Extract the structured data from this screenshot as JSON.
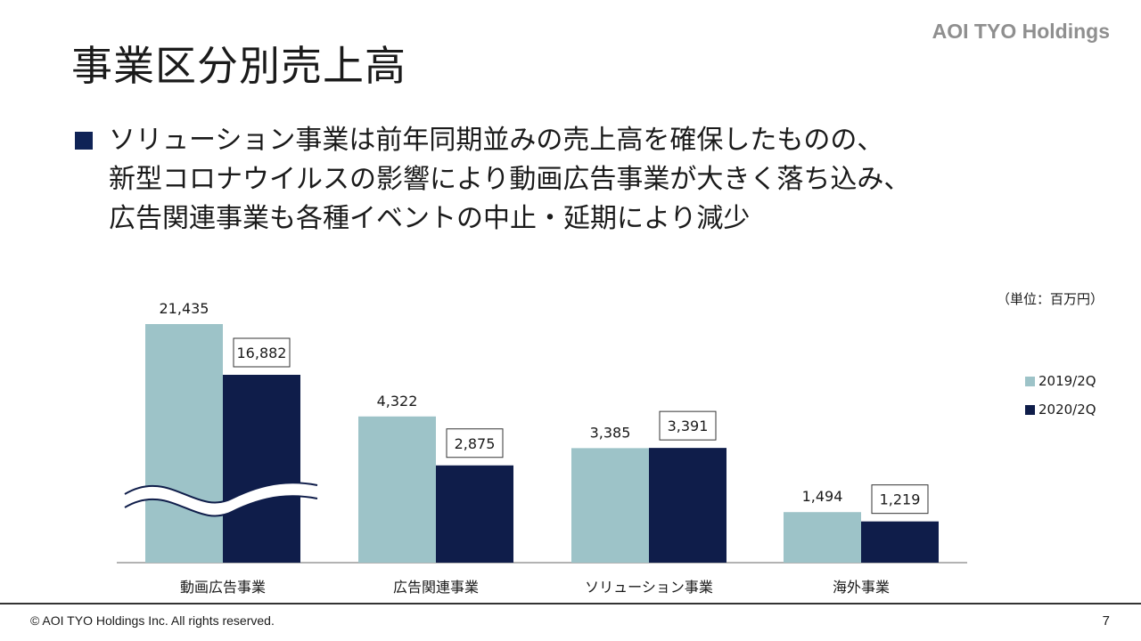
{
  "header": {
    "title": "事業区分別売上高",
    "brand": "AOI TYO Holdings"
  },
  "summary": {
    "lines": [
      "ソリューション事業は前年同期並みの売上高を確保したものの、",
      "新型コロナウイルスの影響により動画広告事業が大きく落ち込み、",
      "広告関連事業も各種イベントの中止・延期により減少"
    ]
  },
  "unit_label": "（単位：百万円）",
  "chart_data": {
    "type": "bar",
    "categories": [
      "動画広告事業",
      "広告関連事業",
      "ソリューション事業",
      "海外事業"
    ],
    "series": [
      {
        "name": "2019/2Q",
        "values": [
          21435,
          4322,
          3385,
          1494
        ],
        "labels": [
          "21,435",
          "4,322",
          "3,385",
          "1,494"
        ],
        "color": "#9dc3c8"
      },
      {
        "name": "2020/2Q",
        "values": [
          16882,
          2875,
          3391,
          1219
        ],
        "labels": [
          "16,882",
          "2,875",
          "3,391",
          "1,219"
        ],
        "color": "#0f1d4a"
      }
    ],
    "axis_break": true,
    "legend": "right"
  },
  "footer": {
    "copyright": "© AOI TYO Holdings Inc. All rights reserved.",
    "page_number": "7"
  }
}
